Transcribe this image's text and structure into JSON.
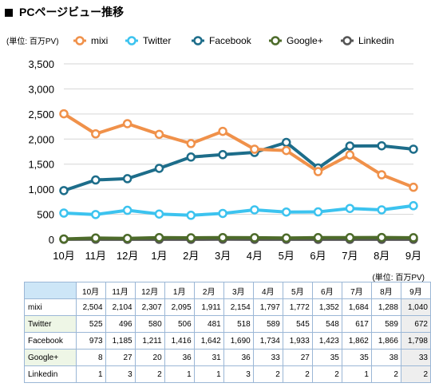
{
  "title": "PCページビュー推移",
  "chart_data": {
    "type": "line",
    "unit_label": "(単位: 百万PV)",
    "categories": [
      "10月",
      "11月",
      "12月",
      "1月",
      "2月",
      "3月",
      "4月",
      "5月",
      "6月",
      "7月",
      "8月",
      "9月"
    ],
    "ylim": [
      0,
      3500
    ],
    "yticks": [
      0,
      500,
      1000,
      1500,
      2000,
      2500,
      3000,
      3500
    ],
    "ytick_labels": [
      "0",
      "500",
      "1,000",
      "1,500",
      "2,000",
      "2,500",
      "3,000",
      "3,500"
    ],
    "grid": true,
    "legend_position": "top",
    "series": [
      {
        "name": "mixi",
        "color": "#f0914a",
        "values": [
          2504,
          2104,
          2307,
          2095,
          1911,
          2154,
          1797,
          1772,
          1352,
          1684,
          1288,
          1040
        ]
      },
      {
        "name": "Twitter",
        "color": "#3cc3ef",
        "values": [
          525,
          496,
          580,
          506,
          481,
          518,
          589,
          545,
          548,
          617,
          589,
          672
        ]
      },
      {
        "name": "Facebook",
        "color": "#1d6d8a",
        "values": [
          973,
          1185,
          1211,
          1416,
          1642,
          1690,
          1734,
          1933,
          1423,
          1862,
          1866,
          1798
        ]
      },
      {
        "name": "Google+",
        "color": "#4d6b2a",
        "values": [
          8,
          27,
          20,
          36,
          31,
          36,
          33,
          27,
          35,
          35,
          38,
          33
        ]
      },
      {
        "name": "Linkedin",
        "color": "#555555",
        "values": [
          1,
          3,
          2,
          1,
          1,
          3,
          2,
          2,
          2,
          1,
          2,
          2
        ]
      }
    ]
  },
  "table": {
    "unit_label": "(単位: 百万PV)",
    "rows": [
      {
        "label": "mixi",
        "head_color": "#ffffff",
        "values": [
          "2,504",
          "2,104",
          "2,307",
          "2,095",
          "1,911",
          "2,154",
          "1,797",
          "1,772",
          "1,352",
          "1,684",
          "1,288",
          "1,040"
        ]
      },
      {
        "label": "Twitter",
        "head_color": "#eef6e6",
        "values": [
          "525",
          "496",
          "580",
          "506",
          "481",
          "518",
          "589",
          "545",
          "548",
          "617",
          "589",
          "672"
        ]
      },
      {
        "label": "Facebook",
        "head_color": "#ffffff",
        "values": [
          "973",
          "1,185",
          "1,211",
          "1,416",
          "1,642",
          "1,690",
          "1,734",
          "1,933",
          "1,423",
          "1,862",
          "1,866",
          "1,798"
        ]
      },
      {
        "label": "Google+",
        "head_color": "#eef6e6",
        "values": [
          "8",
          "27",
          "20",
          "36",
          "31",
          "36",
          "33",
          "27",
          "35",
          "35",
          "38",
          "33"
        ]
      },
      {
        "label": "Linkedin",
        "head_color": "#ffffff",
        "values": [
          "1",
          "3",
          "2",
          "1",
          "1",
          "3",
          "2",
          "2",
          "2",
          "1",
          "2",
          "2"
        ]
      }
    ]
  }
}
